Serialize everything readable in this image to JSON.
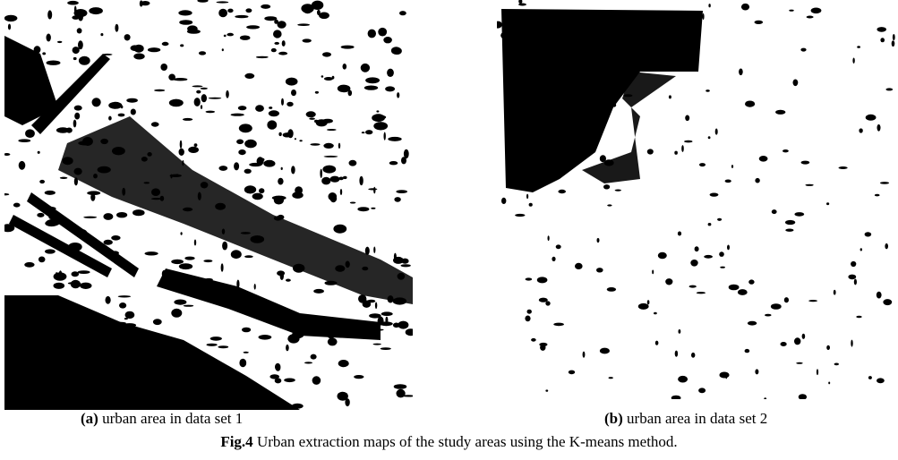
{
  "figures": [
    {
      "label": "(a)",
      "caption": "urban area in data set 1"
    },
    {
      "label": "(b)",
      "caption": "urban area in data set 2"
    }
  ],
  "figure_caption": {
    "label": "Fig.4",
    "text": "Urban extraction maps of the study areas using the K-means method."
  }
}
